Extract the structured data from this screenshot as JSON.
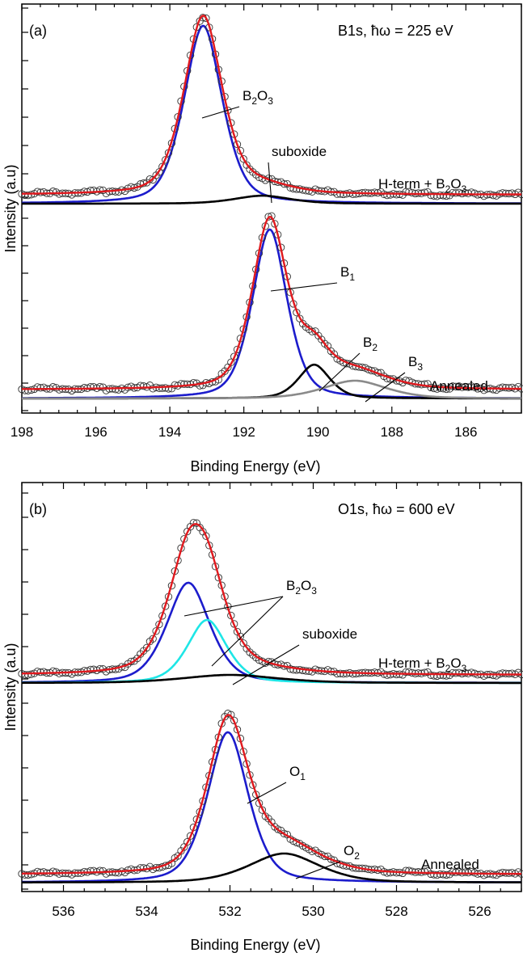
{
  "figure": {
    "ylabel": "Intensity (a.u)"
  },
  "chart_data": [
    {
      "type": "line",
      "panel_label": "(a)",
      "title": "B1s, ħω = 225 eV",
      "xlabel": "Binding Energy (eV)",
      "ylabel": "Intensity (a.u)",
      "xlim": [
        198,
        184.5
      ],
      "x_reversed": true,
      "xticks": [
        198,
        196,
        194,
        192,
        190,
        188,
        186
      ],
      "grid": false,
      "legend": "none",
      "spectra": [
        {
          "name": "H-term + B2O3",
          "label_parts": [
            [
              "H-term + B",
              ""
            ],
            [
              "2",
              "sub"
            ],
            [
              "O",
              ""
            ],
            [
              "3",
              "sub"
            ]
          ],
          "baseline": 0.0,
          "fit_color": "#e0191e",
          "components": [
            {
              "name": "B2O3",
              "label_parts": [
                [
                  "B",
                  ""
                ],
                [
                  "2",
                  "sub"
                ],
                [
                  "O",
                  ""
                ],
                [
                  "3",
                  "sub"
                ]
              ],
              "color": "#1c1ccc",
              "center": 193.1,
              "amplitude": 1.0,
              "width": 0.55
            },
            {
              "name": "suboxide",
              "label_parts": [
                [
                  "suboxide",
                  ""
                ]
              ],
              "color": "#000000",
              "center": 191.5,
              "amplitude": 0.045,
              "width": 0.8
            }
          ]
        },
        {
          "name": "Annealed",
          "label_parts": [
            [
              "Annealed",
              ""
            ]
          ],
          "baseline": 0.0,
          "fit_color": "#e0191e",
          "components": [
            {
              "name": "B1",
              "label_parts": [
                [
                  "B",
                  ""
                ],
                [
                  "1",
                  "sub"
                ]
              ],
              "color": "#1c1ccc",
              "center": 191.3,
              "amplitude": 0.95,
              "width": 0.5
            },
            {
              "name": "B2",
              "label_parts": [
                [
                  "B",
                  ""
                ],
                [
                  "2",
                  "sub"
                ]
              ],
              "color": "#000000",
              "center": 190.1,
              "amplitude": 0.19,
              "width": 0.45
            },
            {
              "name": "B3",
              "label_parts": [
                [
                  "B",
                  ""
                ],
                [
                  "3",
                  "sub"
                ]
              ],
              "color": "#8a8a8a",
              "center": 189.0,
              "amplitude": 0.1,
              "width": 0.9
            }
          ]
        }
      ]
    },
    {
      "type": "line",
      "panel_label": "(b)",
      "title": "O1s, ħω = 600 eV",
      "xlabel": "Binding Energy (eV)",
      "ylabel": "Intensity (a.u)",
      "xlim": [
        537,
        525
      ],
      "x_reversed": true,
      "xticks": [
        536,
        534,
        532,
        530,
        528,
        526
      ],
      "grid": false,
      "legend": "none",
      "spectra": [
        {
          "name": "H-term + B2O3",
          "label_parts": [
            [
              "H-term + B",
              ""
            ],
            [
              "2",
              "sub"
            ],
            [
              "O",
              ""
            ],
            [
              "3",
              "sub"
            ]
          ],
          "baseline": 0.0,
          "fit_color": "#e0191e",
          "components": [
            {
              "name": "B2O3",
              "label_parts": [
                [
                  "B",
                  ""
                ],
                [
                  "2",
                  "sub"
                ],
                [
                  "O",
                  ""
                ],
                [
                  "3",
                  "sub"
                ]
              ],
              "color": "#1c1ccc",
              "center": 533.0,
              "amplitude": 0.62,
              "width": 0.55
            },
            {
              "name": "B2O3",
              "label_parts": [
                [
                  "B",
                  ""
                ],
                [
                  "2",
                  "sub"
                ],
                [
                  "O",
                  ""
                ],
                [
                  "3",
                  "sub"
                ]
              ],
              "color": "#1ee6e6",
              "center": 532.55,
              "amplitude": 0.39,
              "width": 0.5
            },
            {
              "name": "suboxide",
              "label_parts": [
                [
                  "suboxide",
                  ""
                ]
              ],
              "color": "#000000",
              "center": 532.0,
              "amplitude": 0.05,
              "width": 1.2
            }
          ]
        },
        {
          "name": "Annealed",
          "label_parts": [
            [
              "Annealed",
              ""
            ]
          ],
          "baseline": 0.0,
          "fit_color": "#e0191e",
          "components": [
            {
              "name": "O1",
              "label_parts": [
                [
                  "O",
                  ""
                ],
                [
                  "1",
                  "sub"
                ]
              ],
              "color": "#1c1ccc",
              "center": 532.05,
              "amplitude": 0.93,
              "width": 0.52
            },
            {
              "name": "O2",
              "label_parts": [
                [
                  "O",
                  ""
                ],
                [
                  "2",
                  "sub"
                ]
              ],
              "color": "#000000",
              "center": 530.7,
              "amplitude": 0.18,
              "width": 0.9
            }
          ]
        }
      ]
    }
  ]
}
